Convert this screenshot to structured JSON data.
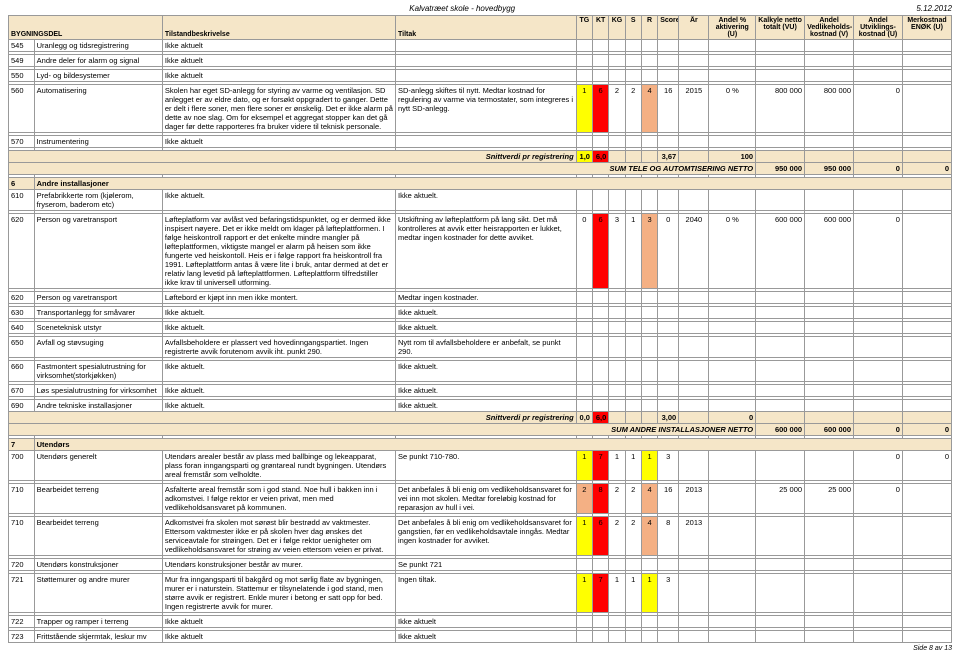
{
  "meta": {
    "title_left": "Kalvatræet skole - hovedbygg",
    "title_right": "5.12.2012",
    "footer": "Side 8 av 13"
  },
  "colors": {
    "header_bg": "#f5e6c8",
    "red": "#ff0000",
    "orange": "#f4b084",
    "yellow": "#ffff00"
  },
  "headers": {
    "bygningsdel": "BYGNINGSDEL",
    "tilstand": "Tilstandbeskrivelse",
    "tiltak": "Tiltak",
    "tg": "TG",
    "kt": "KT",
    "kg": "KG",
    "s": "S",
    "r": "R",
    "score": "Score",
    "ar": "År",
    "andel_akt": "Andel % aktivering (U)",
    "kalkyle": "Kalkyle netto totalt (VU)",
    "andel_ved": "Andel Vedlikeholds-kostnad (V)",
    "andel_utv": "Andel Utviklings-kostnad (U)",
    "merkostnad": "Merkostnad ENØK (U)"
  },
  "rows": [
    {
      "id": "545",
      "name": "Uranlegg og tidsregistrering",
      "desc": "Ikke aktuelt"
    },
    {
      "id": "549",
      "name": "Andre deler for alarm og signal",
      "desc": "Ikke aktuelt"
    },
    {
      "id": "550",
      "name": "Lyd- og bildesystemer",
      "desc": "Ikke aktuelt"
    },
    {
      "id": "560",
      "name": "Automatisering",
      "desc": "Skolen har eget SD-anlegg for styring av varme og ventilasjon. SD anlegget er av eldre dato, og er forsøkt oppgradert to ganger. Dette er delt i flere soner, men flere soner er ønskelig. Det er ikke alarm på dette av noe slag. Om for eksempel et aggregat stopper kan det gå dager før dette rapporteres fra bruker videre til teknisk personale.",
      "tiltak": "SD-anlegg skiftes til nytt. Medtar kostnad for regulering av varme via termostater, som integreres i nytt SD-anlegg.",
      "tg": "1",
      "tg_c": "yellow",
      "kt": "6",
      "kt_c": "red",
      "kg": "2",
      "s": "2",
      "r": "4",
      "r_c": "orange",
      "score": "16",
      "ar": "2015",
      "pct": "0 %",
      "kalk": "800 000",
      "ved": "800 000",
      "utv": "0"
    },
    {
      "id": "570",
      "name": "Instrumentering",
      "desc": "Ikke aktuelt"
    }
  ],
  "sum1": {
    "label": "Snittverdi pr registrering",
    "sublabel": "SUM TELE OG AUTOMTISERING NETTO",
    "v1": "1,0",
    "v1_c": "yellow",
    "v2": "6,0",
    "v2_c": "red",
    "score": "3,67",
    "pct": "100",
    "kalk": "950 000",
    "ved": "950 000",
    "utv": "0",
    "enok": "0"
  },
  "section6": {
    "num": "6",
    "title": "Andre installasjoner"
  },
  "rows6": [
    {
      "id": "610",
      "name": "Prefabrikkerte rom (kjølerom, fryserom, baderom etc)",
      "desc": "Ikke aktuelt.",
      "tiltak": "Ikke aktuelt."
    },
    {
      "id": "620",
      "name": "Person og varetransport",
      "desc": "Løfteplatform var avlåst ved befaringstidspunktet, og er dermed ikke inspisert nøyere. Det er ikke meldt om klager på løfteplattformen. I følge heiskontroll rapport er det enkelte mindre mangler på løfteplattformen, viktigste mangel er alarm på heisen som ikke fungerte ved heiskontoll. Heis er i følge rapport fra heiskontroll fra 1991. Løfteplattform antas å være lite i bruk, antar dermed at det er relativ lang levetid på løfteplattformen. Løfteplattform tilfredstiller ikke krav til universell utforming.",
      "tiltak": "Utskiftning av løfteplattform på lang sikt. Det må kontrolleres at avvik etter heisrapporten er lukket, medtar ingen kostnader for dette avviket.",
      "tg": "0",
      "kt": "6",
      "kt_c": "red",
      "kg": "3",
      "s": "1",
      "r": "3",
      "r_c": "orange",
      "score": "0",
      "ar": "2040",
      "pct": "0 %",
      "kalk": "600 000",
      "ved": "600 000",
      "utv": "0"
    },
    {
      "id": "620",
      "name": "Person og varetransport",
      "desc": "Løftebord er kjøpt inn men ikke montert.",
      "tiltak": "Medtar ingen kostnader."
    },
    {
      "id": "630",
      "name": "Transportanlegg for småvarer",
      "desc": "Ikke aktuelt.",
      "tiltak": "Ikke aktuelt."
    },
    {
      "id": "640",
      "name": "Sceneteknisk utstyr",
      "desc": "Ikke aktuelt.",
      "tiltak": "Ikke aktuelt."
    },
    {
      "id": "650",
      "name": "Avfall og støvsuging",
      "desc": "Avfallsbeholdere er plassert ved hovedinngangspartiet. Ingen registrerte avvik forutenom avvik iht. punkt 290.",
      "tiltak": "Nytt rom til avfallsbeholdere er anbefalt, se punkt 290."
    },
    {
      "id": "660",
      "name": "Fastmontert spesialutrustning for virksomhet(storkjøkken)",
      "desc": "Ikke aktuelt.",
      "tiltak": "Ikke aktuelt."
    },
    {
      "id": "670",
      "name": "Løs spesialutrustning for virksomhet",
      "desc": "Ikke aktuelt.",
      "tiltak": "Ikke aktuelt."
    },
    {
      "id": "690",
      "name": "Andre tekniske installasjoner",
      "desc": "Ikke aktuelt.",
      "tiltak": "Ikke aktuelt."
    }
  ],
  "sum2": {
    "label": "Snittverdi pr registrering",
    "sublabel": "SUM ANDRE INSTALLASJONER NETTO",
    "v1": "0,0",
    "v2": "6,0",
    "v2_c": "red",
    "score": "3,00",
    "pct": "0",
    "kalk": "600 000",
    "ved": "600 000",
    "utv": "0",
    "enok": "0"
  },
  "section7": {
    "num": "7",
    "title": "Utendørs"
  },
  "rows7": [
    {
      "id": "700",
      "name": "Utendørs generelt",
      "desc": "Utendørs arealer består av plass med ballbinge og lekeapparat, plass foran inngangsparti og grøntareal rundt bygningen. Utendørs areal fremstår som velholdte.",
      "tiltak": "Se punkt 710-780.",
      "tg": "1",
      "tg_c": "yellow",
      "kt": "7",
      "kt_c": "red",
      "kg": "1",
      "s": "1",
      "r": "1",
      "r_c": "yellow",
      "score": "3",
      "utv": "0",
      "enok": "0"
    },
    {
      "id": "710",
      "name": "Bearbeidet terreng",
      "desc": "Asfalterte areal fremstår som i god stand. Noe hull i bakken inn i adkomstvei. I følge rektor er veien privat, men med vedlikeholdsansvaret på kommunen.",
      "tiltak": "Det anbefales å bli enig om vedlikeholdsansvaret for vei inn mot skolen. Medtar foreløbig kostnad for reparasjon av hull i vei.",
      "tg": "2",
      "tg_c": "orange",
      "kt": "8",
      "kt_c": "red",
      "kg": "2",
      "s": "2",
      "r": "4",
      "r_c": "orange",
      "score": "16",
      "ar": "2013",
      "kalk": "25 000",
      "ved": "25 000",
      "utv": "0"
    },
    {
      "id": "710",
      "name": "Bearbeidet terreng",
      "desc": "Adkomstvei fra skolen mot sørøst blir bestrødd av vaktmester. Ettersom vaktmester ikke er på skolen hver dag ønskes det serviceavtale for strøingen. Det er i følge rektor uenigheter om vedlikeholdsansvaret for strøing av veien ettersom veien er privat.",
      "tiltak": "Det anbefales å bli enig om vedlikeholdsansvaret for gangstien, før en vedlikeholdsavtale inngås. Medtar ingen kostnader for avviket.",
      "tg": "1",
      "tg_c": "yellow",
      "kt": "6",
      "kt_c": "red",
      "kg": "2",
      "s": "2",
      "r": "4",
      "r_c": "orange",
      "score": "8",
      "ar": "2013"
    },
    {
      "id": "720",
      "name": "Utendørs konstruksjoner",
      "desc": "Utendørs konstruksjoner består av murer.",
      "tiltak": "Se punkt 721"
    },
    {
      "id": "721",
      "name": "Støttemurer og andre murer",
      "desc": "Mur fra inngangsparti til bakgård og mot sørlig flate av bygningen, murer er i naturstein. Stattemur er tilsynelatende i god stand, men større avvik er registrert. Enkle murer i betong er satt opp for bed. Ingen registrerte avvik for murer.",
      "tiltak": "Ingen tiltak.",
      "tg": "1",
      "tg_c": "yellow",
      "kt": "7",
      "kt_c": "red",
      "kg": "1",
      "s": "1",
      "r": "1",
      "r_c": "yellow",
      "score": "3"
    },
    {
      "id": "722",
      "name": "Trapper og ramper i terreng",
      "desc": "Ikke aktuelt",
      "tiltak": "Ikke aktuelt"
    },
    {
      "id": "723",
      "name": "Frittstående skjermtak, leskur mv",
      "desc": "Ikke aktuelt",
      "tiltak": "Ikke aktuelt"
    }
  ]
}
